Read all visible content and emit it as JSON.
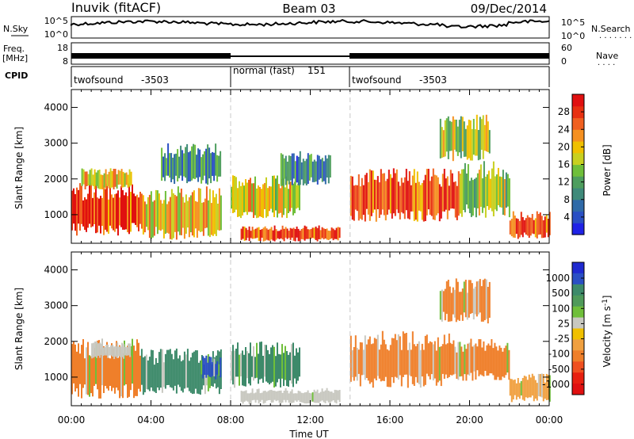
{
  "header": {
    "station": "Inuvik (fitACF)",
    "beam": "Beam 03",
    "date": "09/Dec/2014"
  },
  "noise_panel": {
    "left_label": "N.Sky",
    "left_ticks": [
      "10^5",
      "10^0"
    ],
    "right_label": "N.Search",
    "right_ticks": [
      "10^5",
      "10^0"
    ]
  },
  "freq_panel": {
    "left_label_line1": "Freq.",
    "left_label_line2": "[MHz]",
    "left_ticks": [
      "18",
      "8"
    ],
    "right_label": "Nave",
    "right_ticks": [
      "60",
      "0"
    ]
  },
  "cpid_panel": {
    "label": "CPID",
    "modes": [
      {
        "name": "twofsound",
        "id": "-3503",
        "start": "00:00",
        "end": "08:00"
      },
      {
        "name": "normal (fast)",
        "id": "151",
        "start": "08:00",
        "end": "14:00"
      },
      {
        "name": "twofsound",
        "id": "-3503",
        "start": "14:00",
        "end": "24:00"
      }
    ]
  },
  "chart_data": [
    {
      "type": "heatmap",
      "title": "",
      "xlabel": "",
      "ylabel": "Slant Range [km]",
      "x_unit": "hours UT",
      "xlim": [
        0,
        24
      ],
      "ylim": [
        200,
        4500
      ],
      "yticks": [
        1000,
        2000,
        3000,
        4000
      ],
      "colorbar": {
        "label": "Power [dB]",
        "ticks": [
          4,
          8,
          12,
          16,
          20,
          24,
          28
        ],
        "range": [
          0,
          32
        ]
      },
      "grid": false,
      "regions": [
        {
          "t0": 0.0,
          "t1": 3.5,
          "r0": 400,
          "r1": 1900,
          "value": 28
        },
        {
          "t0": 0.5,
          "t1": 3.0,
          "r0": 1700,
          "r1": 2300,
          "value": 20
        },
        {
          "t0": 3.5,
          "t1": 7.5,
          "r0": 300,
          "r1": 1800,
          "value": 20
        },
        {
          "t0": 4.5,
          "t1": 7.5,
          "r0": 1800,
          "r1": 3000,
          "value": 8
        },
        {
          "t0": 8.0,
          "t1": 11.5,
          "r0": 900,
          "r1": 2100,
          "value": 20
        },
        {
          "t0": 8.5,
          "t1": 13.5,
          "r0": 250,
          "r1": 700,
          "value": 28
        },
        {
          "t0": 10.5,
          "t1": 13.0,
          "r0": 1800,
          "r1": 2800,
          "value": 8
        },
        {
          "t0": 14.0,
          "t1": 19.5,
          "r0": 800,
          "r1": 2300,
          "value": 28
        },
        {
          "t0": 19.5,
          "t1": 22.0,
          "r0": 900,
          "r1": 2500,
          "value": 16
        },
        {
          "t0": 22.0,
          "t1": 24.0,
          "r0": 300,
          "r1": 1100,
          "value": 28
        },
        {
          "t0": 18.5,
          "t1": 21.0,
          "r0": 2500,
          "r1": 3800,
          "value": 16
        }
      ]
    },
    {
      "type": "heatmap",
      "title": "",
      "xlabel": "Time UT",
      "ylabel": "Slant Range [km]",
      "x_unit": "hours UT",
      "xlim": [
        0,
        24
      ],
      "xticks": [
        "00:00",
        "04:00",
        "08:00",
        "12:00",
        "16:00",
        "20:00",
        "00:00"
      ],
      "ylim": [
        200,
        4500
      ],
      "yticks": [
        1000,
        2000,
        3000,
        4000
      ],
      "colorbar": {
        "label": "Velocity [m s^-1]",
        "ticks": [
          1000,
          500,
          100,
          25,
          -25,
          -100,
          -500,
          -1000
        ]
      },
      "grid": false,
      "regions": [
        {
          "t0": 0.0,
          "t1": 3.5,
          "r0": 400,
          "r1": 2100,
          "value": -200
        },
        {
          "t0": 1.0,
          "t1": 3.0,
          "r0": 1500,
          "r1": 2000,
          "value": 0
        },
        {
          "t0": 3.5,
          "t1": 7.5,
          "r0": 500,
          "r1": 1800,
          "value": 200
        },
        {
          "t0": 6.5,
          "t1": 7.5,
          "r0": 900,
          "r1": 1600,
          "value": 800
        },
        {
          "t0": 8.0,
          "t1": 11.5,
          "r0": 700,
          "r1": 2000,
          "value": 200
        },
        {
          "t0": 8.5,
          "t1": 13.5,
          "r0": 250,
          "r1": 700,
          "value": 0
        },
        {
          "t0": 14.0,
          "t1": 19.0,
          "r0": 700,
          "r1": 2300,
          "value": -200
        },
        {
          "t0": 19.0,
          "t1": 22.0,
          "r0": 900,
          "r1": 2100,
          "value": -200
        },
        {
          "t0": 22.0,
          "t1": 24.0,
          "r0": 300,
          "r1": 1100,
          "value": -100
        },
        {
          "t0": 18.5,
          "t1": 21.0,
          "r0": 2500,
          "r1": 3800,
          "value": -200
        }
      ]
    }
  ]
}
